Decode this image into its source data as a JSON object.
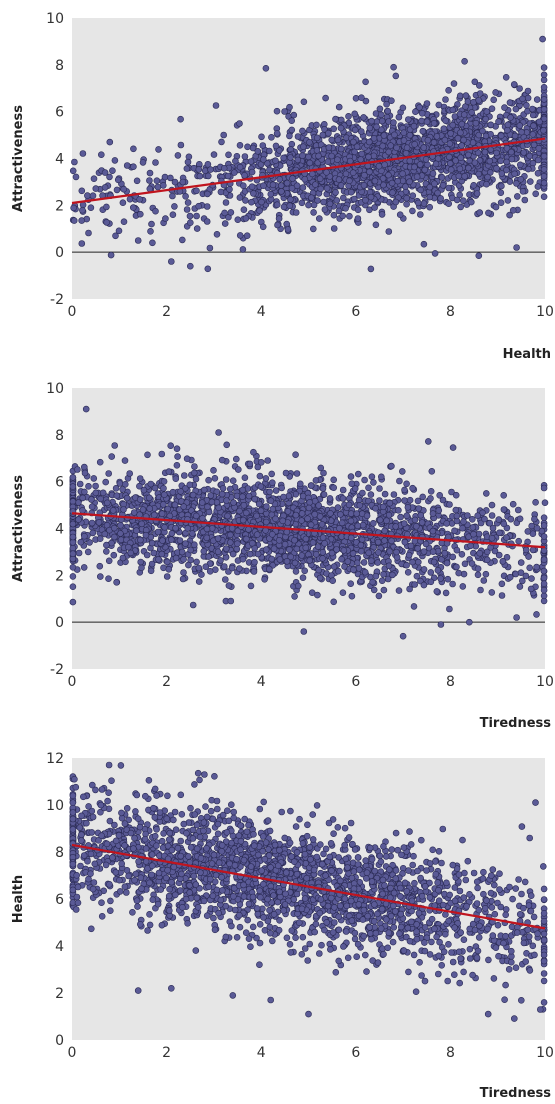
{
  "colors": {
    "plot_background": "#e6e6e6",
    "point_fill": "#5a5a96",
    "point_stroke": "#2b2b55",
    "trend_line": "#c0141e",
    "zero_line": "#222222"
  },
  "chart_data": [
    {
      "type": "scatter",
      "xlabel": "Health",
      "ylabel": "Attractiveness",
      "xlim": [
        0,
        10
      ],
      "ylim": [
        -2,
        10
      ],
      "xticks": [
        0,
        2,
        4,
        6,
        8,
        10
      ],
      "yticks": [
        -2,
        0,
        2,
        4,
        6,
        8,
        10
      ],
      "grid": false,
      "zero_line": true,
      "trend": {
        "x": [
          0,
          10
        ],
        "y": [
          2.1,
          4.85
        ]
      },
      "points_count": 2400,
      "cluster": {
        "x_center": 7.2,
        "x_spread": 2.0,
        "y_spread": 1.1
      },
      "notable_points": [
        {
          "x": 0.05,
          "y": 3.85
        },
        {
          "x": 0.4,
          "y": 1.9
        },
        {
          "x": 0.7,
          "y": 3.4
        },
        {
          "x": 0.8,
          "y": 4.7
        },
        {
          "x": 1.1,
          "y": 1.3
        },
        {
          "x": 1.4,
          "y": 0.5
        },
        {
          "x": 1.7,
          "y": 0.4
        },
        {
          "x": 2.1,
          "y": -0.4
        },
        {
          "x": 2.5,
          "y": -0.6
        },
        {
          "x": 4.1,
          "y": 7.85
        },
        {
          "x": 6.8,
          "y": 7.9
        },
        {
          "x": 8.3,
          "y": 8.15
        },
        {
          "x": 8.6,
          "y": -0.15
        },
        {
          "x": 9.4,
          "y": 0.2
        },
        {
          "x": 9.95,
          "y": 9.1
        }
      ]
    },
    {
      "type": "scatter",
      "xlabel": "Tiredness",
      "ylabel": "Attractiveness",
      "xlim": [
        0,
        10
      ],
      "ylim": [
        -2,
        10
      ],
      "xticks": [
        0,
        2,
        4,
        6,
        8,
        10
      ],
      "yticks": [
        -2,
        0,
        2,
        4,
        6,
        8,
        10
      ],
      "grid": false,
      "zero_line": true,
      "trend": {
        "x": [
          0,
          10
        ],
        "y": [
          4.65,
          3.2
        ]
      },
      "points_count": 2400,
      "cluster": {
        "x_center": 4.2,
        "x_spread": 2.6,
        "y_spread": 1.1
      },
      "notable_points": [
        {
          "x": 0.3,
          "y": 9.1
        },
        {
          "x": 3.1,
          "y": 8.1
        },
        {
          "x": 4.9,
          "y": -0.4
        },
        {
          "x": 7.0,
          "y": -0.6
        },
        {
          "x": 7.8,
          "y": -0.1
        },
        {
          "x": 8.4,
          "y": 0.0
        },
        {
          "x": 9.4,
          "y": 0.2
        },
        {
          "x": 10.0,
          "y": 5.1
        }
      ]
    },
    {
      "type": "scatter",
      "xlabel": "Tiredness",
      "ylabel": "Health",
      "xlim": [
        0,
        10
      ],
      "ylim": [
        0,
        12
      ],
      "xticks": [
        0,
        2,
        4,
        6,
        8,
        10
      ],
      "yticks": [
        0,
        2,
        4,
        6,
        8,
        10,
        12
      ],
      "grid": false,
      "zero_line": false,
      "trend": {
        "x": [
          0,
          10
        ],
        "y": [
          8.3,
          4.75
        ]
      },
      "points_count": 2400,
      "cluster": {
        "x_center": 4.2,
        "x_spread": 2.6,
        "y_spread": 1.25
      },
      "notable_points": [
        {
          "x": 0.05,
          "y": 11.1
        },
        {
          "x": 2.8,
          "y": 11.3
        },
        {
          "x": 1.4,
          "y": 2.1
        },
        {
          "x": 2.1,
          "y": 2.2
        },
        {
          "x": 3.4,
          "y": 1.9
        },
        {
          "x": 4.2,
          "y": 1.7
        },
        {
          "x": 5.0,
          "y": 1.1
        },
        {
          "x": 8.8,
          "y": 1.1
        },
        {
          "x": 9.9,
          "y": 1.3
        },
        {
          "x": 9.8,
          "y": 10.1
        }
      ]
    }
  ]
}
